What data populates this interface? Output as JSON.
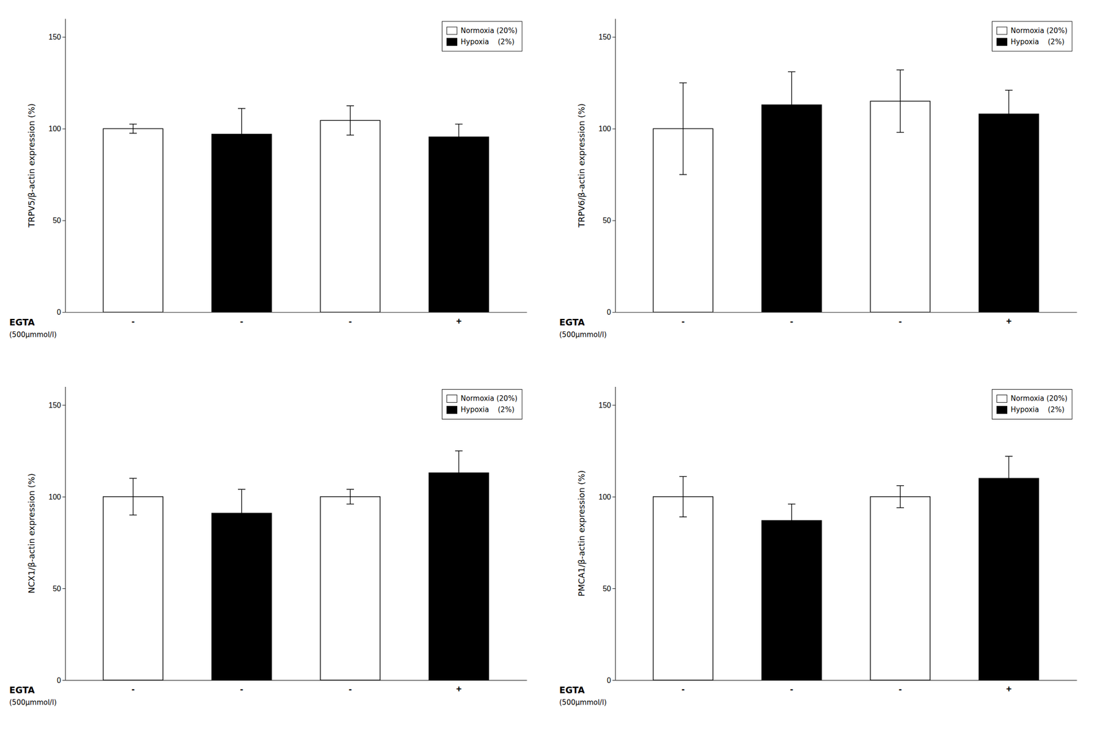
{
  "chart_data": [
    {
      "type": "bar",
      "ylabel": "TRPV5/β-actin expression (%)",
      "categories": [
        "-",
        "-",
        "-",
        "+"
      ],
      "series": [
        {
          "name": "Normoxia (20%)",
          "color": "white",
          "values": [
            100,
            null,
            104.5,
            null
          ],
          "errors": [
            2.5,
            null,
            8,
            null
          ]
        },
        {
          "name": "Hypoxia    (2%)",
          "color": "black",
          "values": [
            null,
            97,
            null,
            95.5
          ],
          "errors": [
            null,
            14,
            null,
            7
          ]
        }
      ],
      "annotations": [
        "EGTA",
        "(500μmmol/l)"
      ],
      "ylim": [
        0,
        160
      ],
      "yticks": [
        0,
        50,
        100,
        150
      ],
      "grid": false,
      "legend": "upper right"
    },
    {
      "type": "bar",
      "ylabel": "TRPV6/β-actin expression (%)",
      "categories": [
        "-",
        "-",
        "-",
        "+"
      ],
      "series": [
        {
          "name": "Normoxia (20%)",
          "color": "white",
          "values": [
            100,
            null,
            115,
            null
          ],
          "errors": [
            25,
            null,
            17,
            null
          ]
        },
        {
          "name": "Hypoxia    (2%)",
          "color": "black",
          "values": [
            null,
            113,
            null,
            108
          ],
          "errors": [
            null,
            18,
            null,
            13
          ]
        }
      ],
      "annotations": [
        "EGTA",
        "(500μmmol/l)"
      ],
      "ylim": [
        0,
        160
      ],
      "yticks": [
        0,
        50,
        100,
        150
      ],
      "grid": false,
      "legend": "upper right"
    },
    {
      "type": "bar",
      "ylabel": "NCX1/β-actin expression (%)",
      "categories": [
        "-",
        "-",
        "-",
        "+"
      ],
      "series": [
        {
          "name": "Normoxia (20%)",
          "color": "white",
          "values": [
            100,
            null,
            100,
            null
          ],
          "errors": [
            10,
            null,
            4,
            null
          ]
        },
        {
          "name": "Hypoxia    (2%)",
          "color": "black",
          "values": [
            null,
            91,
            null,
            113
          ],
          "errors": [
            null,
            13,
            null,
            12
          ]
        }
      ],
      "annotations": [
        "EGTA",
        "(500μmmol/l)"
      ],
      "ylim": [
        0,
        160
      ],
      "yticks": [
        0,
        50,
        100,
        150
      ],
      "grid": false,
      "legend": "upper right"
    },
    {
      "type": "bar",
      "ylabel": "PMCA1/β-actin expression (%)",
      "categories": [
        "-",
        "-",
        "-",
        "+"
      ],
      "series": [
        {
          "name": "Normoxia (20%)",
          "color": "white",
          "values": [
            100,
            null,
            100,
            null
          ],
          "errors": [
            11,
            null,
            6,
            null
          ]
        },
        {
          "name": "Hypoxia    (2%)",
          "color": "black",
          "values": [
            null,
            87,
            null,
            110
          ],
          "errors": [
            null,
            9,
            null,
            12
          ]
        }
      ],
      "annotations": [
        "EGTA",
        "(500μmmol/l)"
      ],
      "ylim": [
        0,
        160
      ],
      "yticks": [
        0,
        50,
        100,
        150
      ],
      "grid": false,
      "legend": "upper right"
    }
  ]
}
